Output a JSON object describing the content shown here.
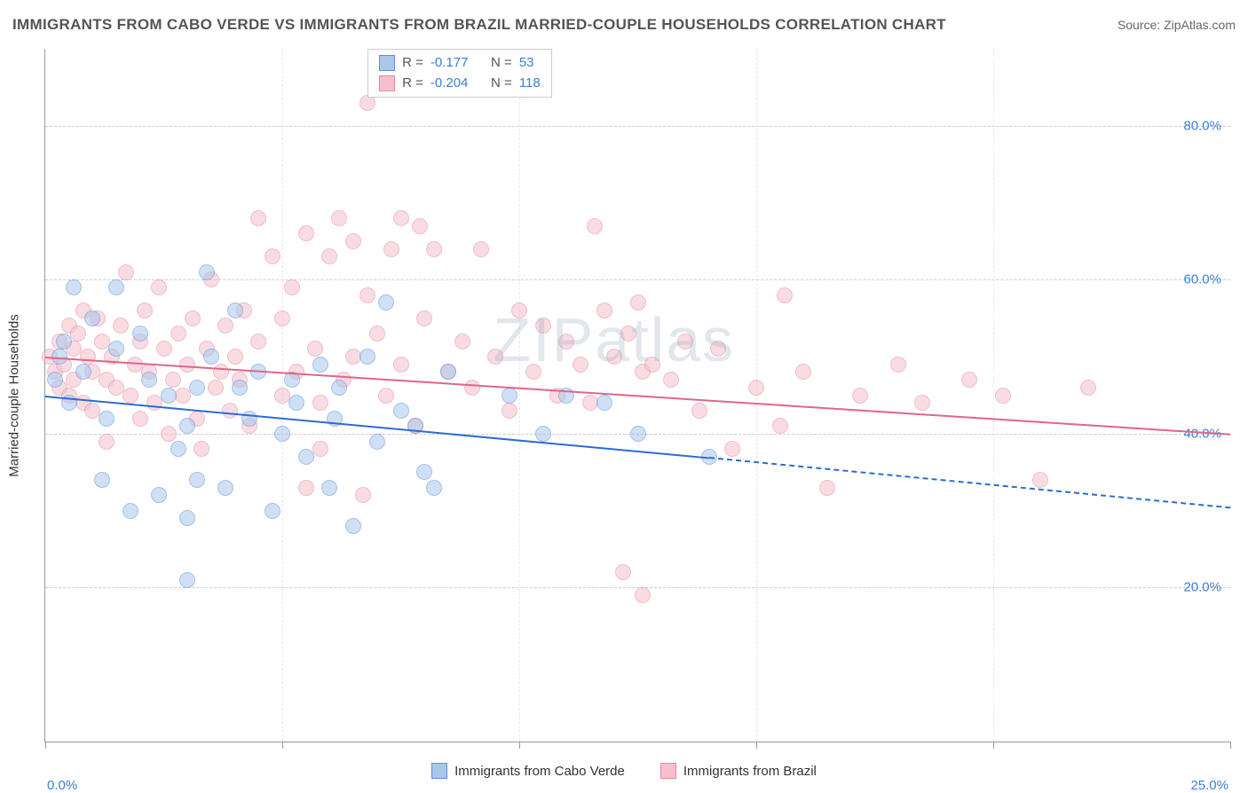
{
  "header": {
    "title": "IMMIGRANTS FROM CABO VERDE VS IMMIGRANTS FROM BRAZIL MARRIED-COUPLE HOUSEHOLDS CORRELATION CHART",
    "source": "Source: ZipAtlas.com"
  },
  "chart": {
    "type": "scatter",
    "ylabel": "Married-couple Households",
    "xlim": [
      0,
      25
    ],
    "ylim": [
      0,
      90
    ],
    "x_ticks": [
      0,
      5,
      10,
      15,
      20,
      25
    ],
    "x_tick_labels": {
      "0": "0.0%",
      "25": "25.0%"
    },
    "y_gridlines": [
      20,
      40,
      60,
      80
    ],
    "y_tick_labels": {
      "20": "20.0%",
      "40": "40.0%",
      "60": "60.0%",
      "80": "80.0%"
    },
    "background_color": "#ffffff",
    "grid_color": "#cccccc",
    "axis_color": "#999999",
    "label_fontsize": 15,
    "tick_color": "#3b7dd8",
    "marker_radius": 9,
    "marker_opacity": 0.55,
    "watermark_text": "ZIPatlas",
    "series": [
      {
        "name": "Immigrants from Cabo Verde",
        "fill": "#a9c7ec",
        "stroke": "#5b8fd6",
        "line_color": "#2b6cd1",
        "R": "-0.177",
        "N": "53",
        "trend": {
          "x1": 0,
          "y1": 45,
          "x2": 14,
          "y2": 37,
          "x2_ext": 25,
          "y2_ext": 30.5
        },
        "points": [
          [
            0.2,
            47
          ],
          [
            0.3,
            50
          ],
          [
            0.5,
            44
          ],
          [
            0.4,
            52
          ],
          [
            0.6,
            59
          ],
          [
            0.8,
            48
          ],
          [
            1.0,
            55
          ],
          [
            1.2,
            34
          ],
          [
            1.5,
            51
          ],
          [
            1.5,
            59
          ],
          [
            1.3,
            42
          ],
          [
            1.8,
            30
          ],
          [
            2.0,
            53
          ],
          [
            2.2,
            47
          ],
          [
            2.4,
            32
          ],
          [
            2.6,
            45
          ],
          [
            2.8,
            38
          ],
          [
            3.0,
            41
          ],
          [
            3.0,
            29
          ],
          [
            3.0,
            21
          ],
          [
            3.2,
            34
          ],
          [
            3.4,
            61
          ],
          [
            3.5,
            50
          ],
          [
            3.2,
            46
          ],
          [
            3.8,
            33
          ],
          [
            4.0,
            56
          ],
          [
            4.1,
            46
          ],
          [
            4.3,
            42
          ],
          [
            4.5,
            48
          ],
          [
            4.8,
            30
          ],
          [
            5.0,
            40
          ],
          [
            5.2,
            47
          ],
          [
            5.5,
            37
          ],
          [
            5.3,
            44
          ],
          [
            5.8,
            49
          ],
          [
            6.0,
            33
          ],
          [
            6.1,
            42
          ],
          [
            6.2,
            46
          ],
          [
            6.5,
            28
          ],
          [
            6.8,
            50
          ],
          [
            7.0,
            39
          ],
          [
            7.2,
            57
          ],
          [
            7.5,
            43
          ],
          [
            7.8,
            41
          ],
          [
            8.0,
            35
          ],
          [
            8.2,
            33
          ],
          [
            8.5,
            48
          ],
          [
            9.8,
            45
          ],
          [
            10.5,
            40
          ],
          [
            11.0,
            45
          ],
          [
            11.8,
            44
          ],
          [
            12.5,
            40
          ],
          [
            14.0,
            37
          ]
        ]
      },
      {
        "name": "Immigrants from Brazil",
        "fill": "#f4c0cc",
        "stroke": "#e389a3",
        "line_color": "#e06688",
        "R": "-0.204",
        "N": "118",
        "trend": {
          "x1": 0,
          "y1": 50,
          "x2": 25,
          "y2": 40
        },
        "points": [
          [
            0.1,
            50
          ],
          [
            0.2,
            48
          ],
          [
            0.3,
            52
          ],
          [
            0.3,
            46
          ],
          [
            0.4,
            49
          ],
          [
            0.5,
            54
          ],
          [
            0.5,
            45
          ],
          [
            0.6,
            51
          ],
          [
            0.6,
            47
          ],
          [
            0.7,
            53
          ],
          [
            0.8,
            56
          ],
          [
            0.8,
            44
          ],
          [
            0.9,
            50
          ],
          [
            1.0,
            48
          ],
          [
            1.0,
            43
          ],
          [
            1.1,
            55
          ],
          [
            1.2,
            52
          ],
          [
            1.3,
            47
          ],
          [
            1.3,
            39
          ],
          [
            1.4,
            50
          ],
          [
            1.5,
            46
          ],
          [
            1.6,
            54
          ],
          [
            1.7,
            61
          ],
          [
            1.8,
            45
          ],
          [
            1.9,
            49
          ],
          [
            2.0,
            52
          ],
          [
            2.0,
            42
          ],
          [
            2.1,
            56
          ],
          [
            2.2,
            48
          ],
          [
            2.3,
            44
          ],
          [
            2.4,
            59
          ],
          [
            2.5,
            51
          ],
          [
            2.6,
            40
          ],
          [
            2.7,
            47
          ],
          [
            2.8,
            53
          ],
          [
            2.9,
            45
          ],
          [
            3.0,
            49
          ],
          [
            3.1,
            55
          ],
          [
            3.2,
            42
          ],
          [
            3.3,
            38
          ],
          [
            3.4,
            51
          ],
          [
            3.5,
            60
          ],
          [
            3.6,
            46
          ],
          [
            3.7,
            48
          ],
          [
            3.8,
            54
          ],
          [
            3.9,
            43
          ],
          [
            4.0,
            50
          ],
          [
            4.1,
            47
          ],
          [
            4.2,
            56
          ],
          [
            4.3,
            41
          ],
          [
            4.5,
            68
          ],
          [
            4.5,
            52
          ],
          [
            4.8,
            63
          ],
          [
            5.0,
            45
          ],
          [
            5.0,
            55
          ],
          [
            5.2,
            59
          ],
          [
            5.3,
            48
          ],
          [
            5.5,
            66
          ],
          [
            5.5,
            33
          ],
          [
            5.7,
            51
          ],
          [
            5.8,
            44
          ],
          [
            5.8,
            38
          ],
          [
            6.0,
            63
          ],
          [
            6.2,
            68
          ],
          [
            6.3,
            47
          ],
          [
            6.5,
            65
          ],
          [
            6.5,
            50
          ],
          [
            6.7,
            32
          ],
          [
            6.8,
            58
          ],
          [
            6.8,
            83
          ],
          [
            7.0,
            53
          ],
          [
            7.2,
            45
          ],
          [
            7.3,
            64
          ],
          [
            7.5,
            49
          ],
          [
            7.5,
            68
          ],
          [
            7.8,
            41
          ],
          [
            7.9,
            67
          ],
          [
            8.0,
            55
          ],
          [
            8.2,
            64
          ],
          [
            8.5,
            48
          ],
          [
            8.8,
            52
          ],
          [
            9.0,
            46
          ],
          [
            9.2,
            64
          ],
          [
            9.5,
            50
          ],
          [
            9.8,
            43
          ],
          [
            10.0,
            56
          ],
          [
            10.3,
            48
          ],
          [
            10.5,
            54
          ],
          [
            10.8,
            45
          ],
          [
            11.0,
            52
          ],
          [
            11.3,
            49
          ],
          [
            11.5,
            44
          ],
          [
            11.6,
            67
          ],
          [
            11.8,
            56
          ],
          [
            12.0,
            50
          ],
          [
            12.2,
            22
          ],
          [
            12.3,
            53
          ],
          [
            12.5,
            57
          ],
          [
            12.6,
            48
          ],
          [
            12.6,
            19
          ],
          [
            12.8,
            49
          ],
          [
            13.2,
            47
          ],
          [
            13.5,
            52
          ],
          [
            13.8,
            43
          ],
          [
            14.2,
            51
          ],
          [
            14.5,
            38
          ],
          [
            15.0,
            46
          ],
          [
            15.5,
            41
          ],
          [
            15.6,
            58
          ],
          [
            16.0,
            48
          ],
          [
            16.5,
            33
          ],
          [
            17.2,
            45
          ],
          [
            18.0,
            49
          ],
          [
            18.5,
            44
          ],
          [
            19.5,
            47
          ],
          [
            20.2,
            45
          ],
          [
            21.0,
            34
          ],
          [
            22.0,
            46
          ]
        ]
      }
    ],
    "legend_bottom": [
      {
        "label": "Immigrants from Cabo Verde",
        "fill": "#a9c7ec",
        "stroke": "#5b8fd6"
      },
      {
        "label": "Immigrants from Brazil",
        "fill": "#f4c0cc",
        "stroke": "#e389a3"
      }
    ]
  }
}
